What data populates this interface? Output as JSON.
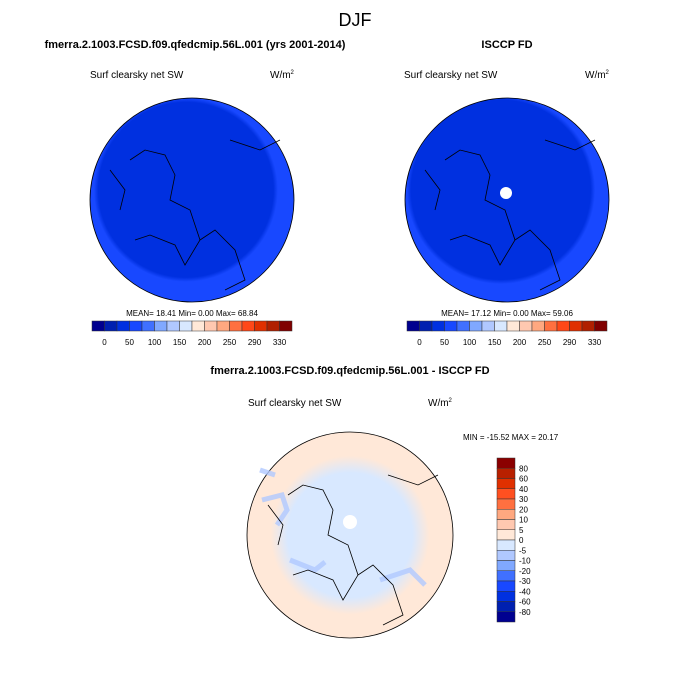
{
  "chart_data": {
    "type": "heatmap",
    "title": "DJF",
    "panels": [
      {
        "title": "fmerra.2.1003.FCSD.f09.qfedcmip.56L.001 (yrs 2001-2014)",
        "variable": "Surf clearsky net SW",
        "units": "W/m",
        "units_exp": "2",
        "stats": "MEAN=  18.41  Min=   0.00  Max=  68.84",
        "colorbar_labels": [
          "0",
          "50",
          "100",
          "150",
          "200",
          "250",
          "290",
          "330"
        ]
      },
      {
        "title": "ISCCP FD",
        "variable": "Surf clearsky net SW",
        "units": "W/m",
        "units_exp": "2",
        "stats": "MEAN=  17.12  Min=   0.00  Max=  59.06",
        "colorbar_labels": [
          "0",
          "50",
          "100",
          "150",
          "200",
          "250",
          "290",
          "330"
        ]
      },
      {
        "title": "fmerra.2.1003.FCSD.f09.qfedcmip.56L.001 - ISCCP FD",
        "variable": "Surf clearsky net SW",
        "units": "W/m",
        "units_exp": "2",
        "stats": "MIN = -15.52 MAX =  20.17",
        "colorbar_labels": [
          "80",
          "60",
          "40",
          "30",
          "20",
          "10",
          "5",
          "0",
          "-5",
          "-10",
          "-20",
          "-30",
          "-40",
          "-60",
          "-80"
        ]
      }
    ],
    "abs_colors": [
      "#00008f",
      "#0020b0",
      "#0030e0",
      "#1848ff",
      "#4070ff",
      "#80a8ff",
      "#b0c8ff",
      "#d8e8ff",
      "#ffe8d8",
      "#ffc8b0",
      "#ffa880",
      "#ff7040",
      "#ff4818",
      "#e03000",
      "#b02000",
      "#800000"
    ],
    "diff_colors": [
      "#8b0000",
      "#b82000",
      "#e03000",
      "#ff5020",
      "#ff7040",
      "#ffa880",
      "#ffc8b0",
      "#ffe8d8",
      "#d8e8ff",
      "#b0c8ff",
      "#80a8ff",
      "#4070ff",
      "#1848ff",
      "#0030e0",
      "#0020b0",
      "#000090"
    ]
  }
}
